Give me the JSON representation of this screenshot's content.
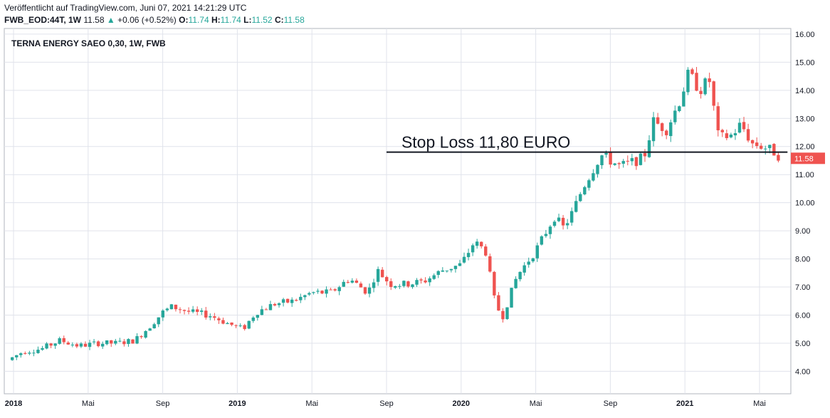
{
  "header": {
    "published": "Veröffentlicht auf TradingView.com, Juni 07, 2021 14:21:29 UTC",
    "symbol": "FWB_EOD:44T, 1W",
    "last": "11.58",
    "arrow": "▲",
    "change": "+0.06 (+0.52%)",
    "o_label": "O:",
    "o_value": "11.74",
    "h_label": "H:",
    "h_value": "11.74",
    "l_label": "L:",
    "l_value": "11.52",
    "c_label": "C:",
    "c_value": "11.58"
  },
  "colors": {
    "up": "#26a69a",
    "down": "#ef5350",
    "grid": "#e0e3eb",
    "text": "#131722"
  },
  "chart_data": {
    "type": "candlestick",
    "title": "TERNA ENERGY SAEO 0,30, 1W, FWB",
    "ylim": [
      3.2,
      16.2
    ],
    "y_ticks": [
      "4.00",
      "5.00",
      "6.00",
      "7.00",
      "8.00",
      "9.00",
      "10.00",
      "11.00",
      "12.00",
      "13.00",
      "14.00",
      "15.00",
      "16.00"
    ],
    "x_range_months": [
      0,
      41.5
    ],
    "x_ticks": [
      {
        "label": "2018",
        "m": 0,
        "bold": true
      },
      {
        "label": "Mai",
        "m": 4,
        "bold": false
      },
      {
        "label": "Sep",
        "m": 8,
        "bold": false
      },
      {
        "label": "2019",
        "m": 12,
        "bold": true
      },
      {
        "label": "Mai",
        "m": 16,
        "bold": false
      },
      {
        "label": "Sep",
        "m": 20,
        "bold": false
      },
      {
        "label": "2020",
        "m": 24,
        "bold": true
      },
      {
        "label": "Mai",
        "m": 28,
        "bold": false
      },
      {
        "label": "Sep",
        "m": 32,
        "bold": false
      },
      {
        "label": "2021",
        "m": 36,
        "bold": true
      },
      {
        "label": "Mai",
        "m": 40,
        "bold": false
      }
    ],
    "anchors": [
      [
        -0.3,
        4.4
      ],
      [
        0.5,
        4.7
      ],
      [
        1.5,
        4.8
      ],
      [
        2.5,
        5.1
      ],
      [
        3.5,
        4.9
      ],
      [
        4.5,
        5.0
      ],
      [
        5.5,
        5.0
      ],
      [
        6.5,
        5.1
      ],
      [
        7.3,
        5.6
      ],
      [
        8.0,
        6.1
      ],
      [
        8.5,
        6.3
      ],
      [
        9.5,
        6.1
      ],
      [
        10.5,
        6.0
      ],
      [
        11.5,
        5.7
      ],
      [
        12.3,
        5.5
      ],
      [
        13.0,
        6.1
      ],
      [
        14.0,
        6.4
      ],
      [
        15.0,
        6.5
      ],
      [
        16.0,
        6.8
      ],
      [
        17.0,
        6.8
      ],
      [
        18.0,
        7.3
      ],
      [
        19.0,
        6.8
      ],
      [
        19.5,
        7.6
      ],
      [
        20.2,
        7.1
      ],
      [
        21.0,
        7.1
      ],
      [
        22.0,
        7.2
      ],
      [
        23.0,
        7.6
      ],
      [
        24.0,
        7.8
      ],
      [
        24.7,
        8.6
      ],
      [
        25.3,
        8.3
      ],
      [
        25.8,
        6.5
      ],
      [
        26.2,
        5.9
      ],
      [
        27.0,
        7.4
      ],
      [
        28.0,
        8.3
      ],
      [
        28.5,
        8.9
      ],
      [
        29.0,
        9.5
      ],
      [
        29.5,
        9.1
      ],
      [
        30.0,
        9.7
      ],
      [
        30.5,
        10.5
      ],
      [
        31.0,
        11.1
      ],
      [
        31.5,
        11.7
      ],
      [
        32.0,
        11.5
      ],
      [
        32.5,
        11.3
      ],
      [
        33.0,
        11.4
      ],
      [
        33.8,
        11.6
      ],
      [
        34.3,
        12.9
      ],
      [
        35.0,
        12.6
      ],
      [
        35.7,
        13.6
      ],
      [
        36.2,
        14.6
      ],
      [
        36.8,
        14.0
      ],
      [
        37.3,
        14.4
      ],
      [
        37.8,
        12.3
      ],
      [
        38.5,
        12.4
      ],
      [
        39.0,
        12.8
      ],
      [
        39.6,
        12.1
      ],
      [
        40.2,
        12.0
      ],
      [
        40.8,
        11.8
      ],
      [
        41.2,
        11.58
      ]
    ],
    "stop_loss": {
      "label": "Stop Loss 11,80 EURO",
      "value": 11.8
    },
    "last_price": {
      "value": 11.58,
      "label": "11.58"
    }
  }
}
